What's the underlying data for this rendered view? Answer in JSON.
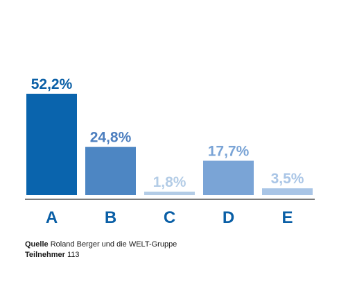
{
  "chart_data": {
    "type": "bar",
    "categories": [
      "A",
      "B",
      "C",
      "D",
      "E"
    ],
    "values": [
      52.2,
      24.8,
      1.8,
      17.7,
      3.5
    ],
    "value_labels": [
      "52,2%",
      "24,8%",
      "1,8%",
      "17,7%",
      "3,5%"
    ],
    "colors": [
      "#0a64ad",
      "#4d86c3",
      "#b3cce6",
      "#7aa4d6",
      "#a9c5e6"
    ],
    "label_colors": [
      "#0a5fa6",
      "#4d7fbf",
      "#b3cce6",
      "#7aa4d6",
      "#a9c5e6"
    ],
    "category_color": "#0a5fa6",
    "ylim": [
      0,
      60
    ],
    "grid": false,
    "legend": "none"
  },
  "footer": {
    "source_label": "Quelle",
    "source_text": "Roland Berger und die WELT-Gruppe",
    "participants_label": "Teilnehmer",
    "participants_value": "113"
  }
}
